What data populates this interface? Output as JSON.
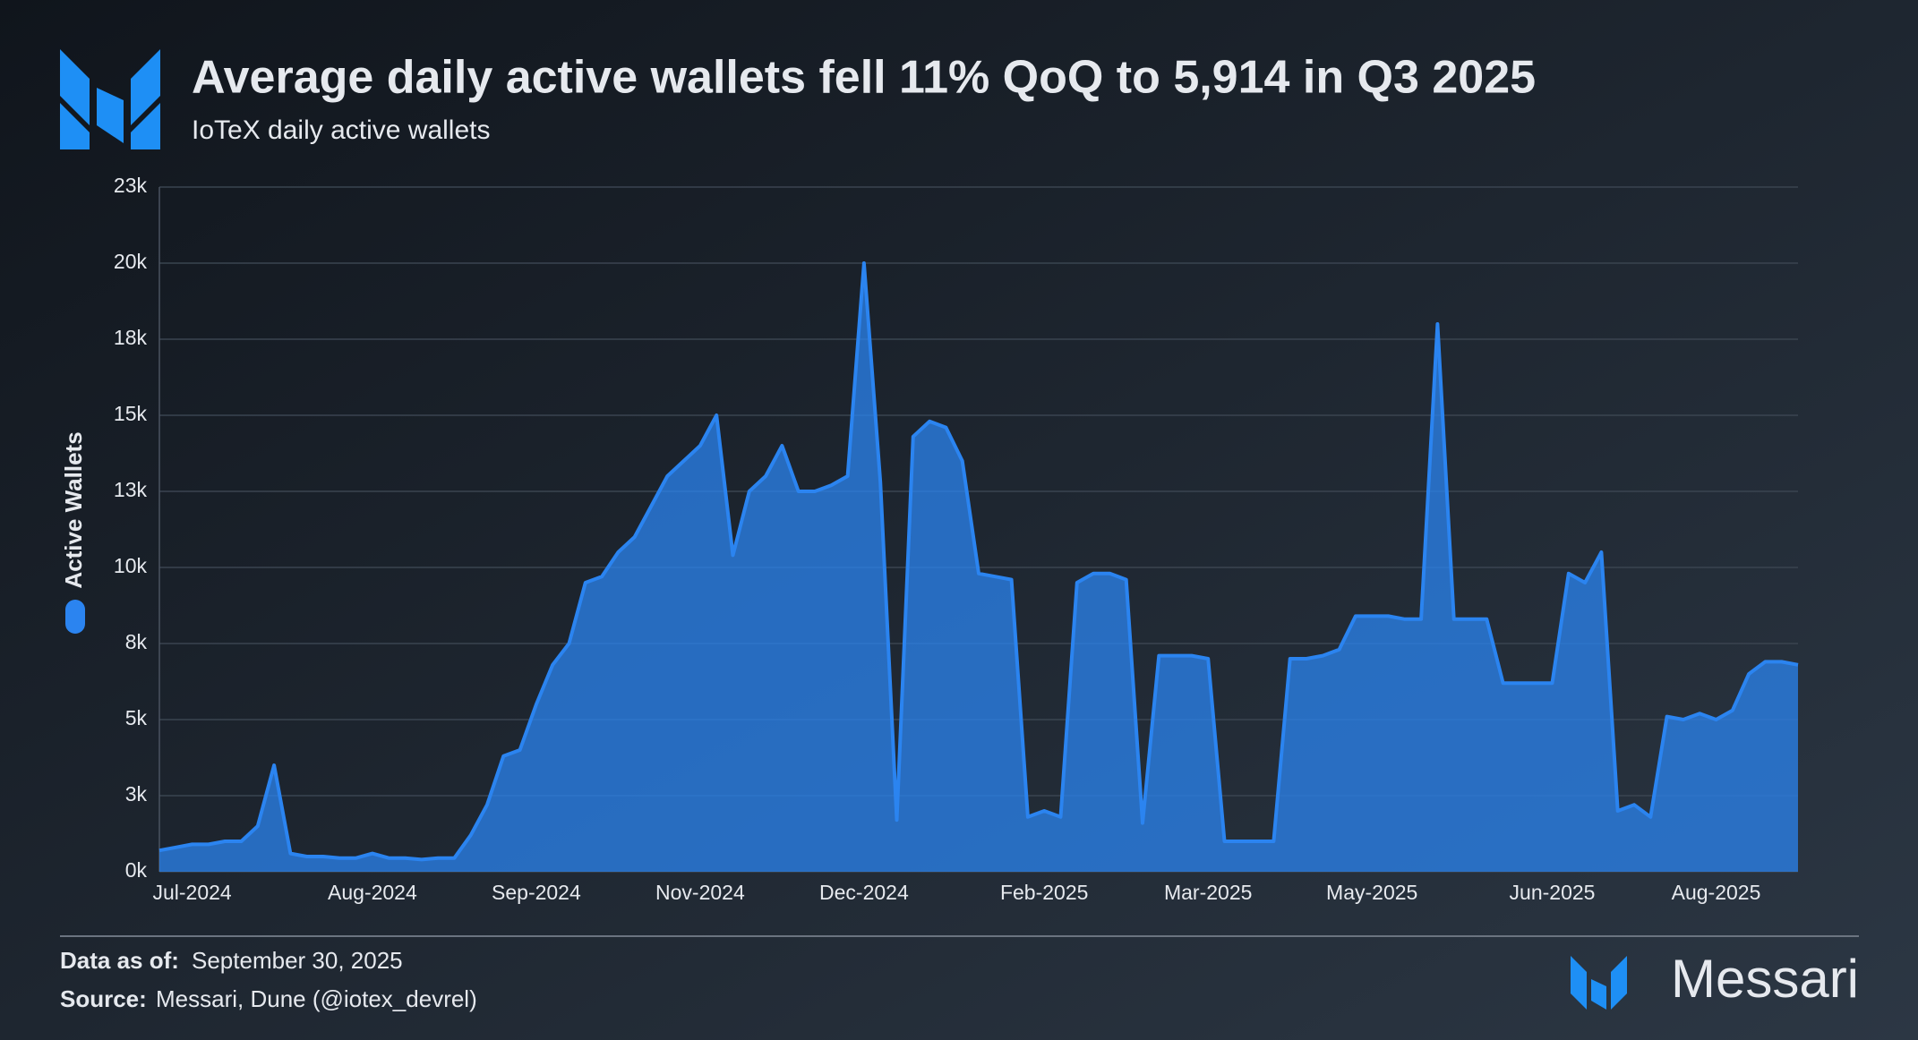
{
  "chart_data": {
    "type": "area",
    "title": "Average daily active wallets fell 11% QoQ to 5,914 in Q3 2025",
    "subtitle": "IoTeX daily active wallets",
    "categories": [
      null,
      null,
      "Jul-2024",
      null,
      null,
      null,
      null,
      null,
      null,
      null,
      null,
      null,
      null,
      "Aug-2024",
      null,
      null,
      null,
      null,
      null,
      null,
      null,
      null,
      null,
      "Sep-2024",
      null,
      null,
      null,
      null,
      null,
      null,
      null,
      null,
      null,
      "Nov-2024",
      null,
      null,
      null,
      null,
      null,
      null,
      null,
      null,
      null,
      "Dec-2024",
      null,
      null,
      null,
      null,
      null,
      null,
      null,
      null,
      null,
      null,
      "Feb-2025",
      null,
      null,
      null,
      null,
      null,
      null,
      null,
      null,
      null,
      "Mar-2025",
      null,
      null,
      null,
      null,
      null,
      null,
      null,
      null,
      null,
      "May-2025",
      null,
      null,
      null,
      null,
      null,
      null,
      null,
      null,
      null,
      null,
      "Jun-2025",
      null,
      null,
      null,
      null,
      null,
      null,
      null,
      null,
      null,
      "Aug-2025",
      null,
      null,
      null,
      null,
      null
    ],
    "series": [
      {
        "name": "Active Wallets",
        "color": "#2b84f0",
        "values": [
          700,
          800,
          900,
          900,
          1000,
          1000,
          1500,
          3500,
          600,
          500,
          500,
          450,
          450,
          600,
          450,
          450,
          400,
          450,
          450,
          1200,
          2200,
          3800,
          4000,
          5500,
          6800,
          7500,
          9500,
          9700,
          10500,
          11000,
          12000,
          13000,
          13500,
          14000,
          15000,
          10400,
          12500,
          13000,
          14000,
          12500,
          12500,
          12700,
          13000,
          20000,
          12800,
          1700,
          14300,
          14800,
          14600,
          13500,
          9800,
          9700,
          9600,
          1800,
          2000,
          1800,
          9500,
          9800,
          9800,
          9600,
          1600,
          7100,
          7100,
          7100,
          7000,
          1000,
          1000,
          1000,
          1000,
          7000,
          7000,
          7100,
          7300,
          8400,
          8400,
          8400,
          8300,
          8300,
          18000,
          8300,
          8300,
          8300,
          6200,
          6200,
          6200,
          6200,
          9800,
          9500,
          10500,
          2000,
          2200,
          1800,
          5100,
          5000,
          5200,
          5000,
          5300,
          6500,
          6900,
          6900,
          6800
        ]
      }
    ],
    "ylim": [
      0,
      22500
    ],
    "yticks": [
      {
        "value": 0,
        "label": "0k"
      },
      {
        "value": 2500,
        "label": "3k"
      },
      {
        "value": 5000,
        "label": "5k"
      },
      {
        "value": 7500,
        "label": "8k"
      },
      {
        "value": 10000,
        "label": "10k"
      },
      {
        "value": 12500,
        "label": "13k"
      },
      {
        "value": 15000,
        "label": "15k"
      },
      {
        "value": 17500,
        "label": "18k"
      },
      {
        "value": 20000,
        "label": "20k"
      },
      {
        "value": 22500,
        "label": "23k"
      }
    ],
    "grid": true
  },
  "footer": {
    "date_label": "Data as of:",
    "date": "September 30, 2025",
    "source_label": "Source:",
    "source": "Messari, Dune (@iotex_devrel)",
    "brand": "Messari"
  }
}
